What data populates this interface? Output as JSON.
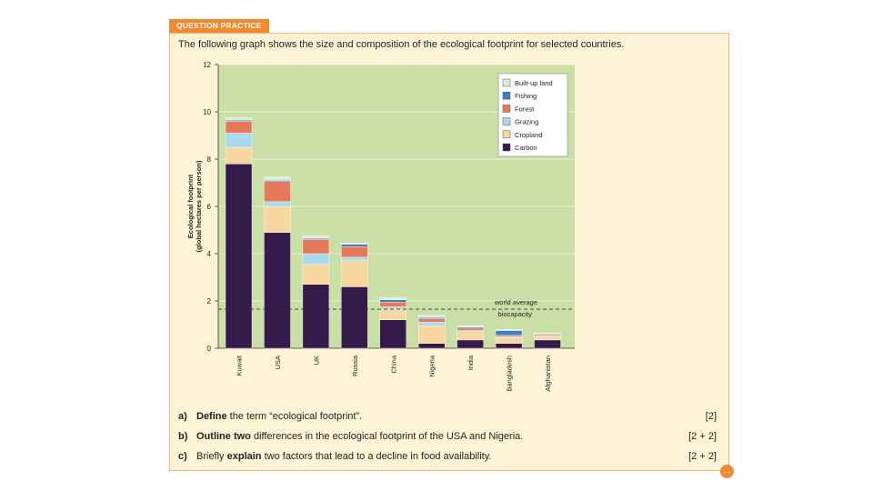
{
  "header": {
    "tab_label": "QUESTION PRACTICE"
  },
  "intro": "The following graph shows the size and composition of the ecological footprint for selected countries.",
  "colors": {
    "carbon": "#341b4a",
    "cropland": "#f8d6a0",
    "grazing": "#a9d9ec",
    "forest": "#e6795a",
    "fishing": "#3a80c1",
    "builtup": "#dcecdc",
    "plot_bg": "#c9dfa6",
    "panel_bg": "#fdf3d7",
    "accent": "#ef8a2d"
  },
  "chart_data": {
    "type": "bar",
    "stacked": true,
    "ylabel_line1": "Ecological footprint",
    "ylabel_line2": "(global hectares per person)",
    "ylim": [
      0,
      12
    ],
    "yticks": [
      0,
      2,
      4,
      6,
      8,
      10,
      12
    ],
    "categories": [
      "Kuwait",
      "USA",
      "UK",
      "Russia",
      "China",
      "Nigeria",
      "India",
      "Bangladesh",
      "Afghanistan"
    ],
    "series": [
      {
        "name": "Carbon",
        "key": "carbon",
        "values": [
          7.8,
          4.9,
          2.7,
          2.6,
          1.2,
          0.2,
          0.35,
          0.2,
          0.35
        ]
      },
      {
        "name": "Cropland",
        "key": "cropland",
        "values": [
          0.7,
          1.1,
          0.85,
          1.1,
          0.45,
          0.75,
          0.35,
          0.25,
          0.15
        ]
      },
      {
        "name": "Grazing",
        "key": "grazing",
        "values": [
          0.6,
          0.2,
          0.45,
          0.15,
          0.1,
          0.15,
          0.05,
          0.05,
          0.05
        ]
      },
      {
        "name": "Forest",
        "key": "forest",
        "values": [
          0.5,
          0.85,
          0.6,
          0.45,
          0.2,
          0.15,
          0.1,
          0.05,
          0.05
        ]
      },
      {
        "name": "Fishing",
        "key": "fishing",
        "values": [
          0.05,
          0.05,
          0.05,
          0.1,
          0.1,
          0.05,
          0.05,
          0.2,
          0.02
        ]
      },
      {
        "name": "Built-up land",
        "key": "builtup",
        "values": [
          0.1,
          0.15,
          0.1,
          0.05,
          0.1,
          0.1,
          0.05,
          0.05,
          0.02
        ]
      }
    ],
    "legend_order": [
      "builtup",
      "fishing",
      "forest",
      "grazing",
      "cropland",
      "carbon"
    ],
    "legend_position": "top-right",
    "reference_line": {
      "value": 1.65,
      "label_line1": "world average",
      "label_line2": "biocapacity",
      "style": "dashed"
    }
  },
  "questions": [
    {
      "label": "a)",
      "verb": "Define",
      "text": " the term “ecological footprint”.",
      "marks": "[2]"
    },
    {
      "label": "b)",
      "verb": "Outline two",
      "text": " differences in the ecological footprint of the USA and Nigeria.",
      "marks": "[2 + 2]"
    },
    {
      "label": "c)",
      "pre": "Briefly ",
      "verb": "explain",
      "text": " two factors that lead to a decline in food availability.",
      "marks": "[2 + 2]"
    }
  ],
  "nav": {
    "next_icon": "arrow-right-icon",
    "next_glyph": "→"
  }
}
